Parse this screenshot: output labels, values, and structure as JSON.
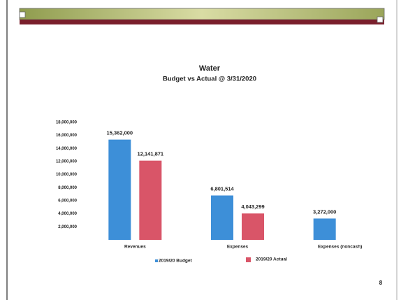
{
  "chart_data": {
    "type": "bar",
    "title": "Water",
    "subtitle": "Budget vs Actual @ 3/31/2020",
    "categories": [
      "Revenues",
      "Expenses",
      "Expenses (noncash)"
    ],
    "series": [
      {
        "name": "2019/20 Budget",
        "color": "#3d8fd8",
        "values": [
          15362000,
          6801514,
          3272000
        ],
        "value_labels": [
          "15,362,000",
          "6,801,514",
          "3,272,000"
        ]
      },
      {
        "name": "2019/20 Actual",
        "color": "#d95568",
        "values": [
          12141871,
          4043299,
          null
        ],
        "value_labels": [
          "12,141,871",
          "4,043,299",
          null
        ]
      }
    ],
    "ylim": [
      0,
      18000000
    ],
    "yticks": [
      {
        "value": 2000000,
        "label": "2,000,000"
      },
      {
        "value": 4000000,
        "label": "4,000,000"
      },
      {
        "value": 6000000,
        "label": "6,000,000"
      },
      {
        "value": 8000000,
        "label": "8,000,000"
      },
      {
        "value": 10000000,
        "label": "10,000,000"
      },
      {
        "value": 12000000,
        "label": "12,000,000"
      },
      {
        "value": 14000000,
        "label": "14,000,000"
      },
      {
        "value": 16000000,
        "label": "16,000,000"
      },
      {
        "value": 18000000,
        "label": "18,000,000"
      }
    ],
    "grid": false,
    "legend": "bottom"
  },
  "page_number": "8"
}
